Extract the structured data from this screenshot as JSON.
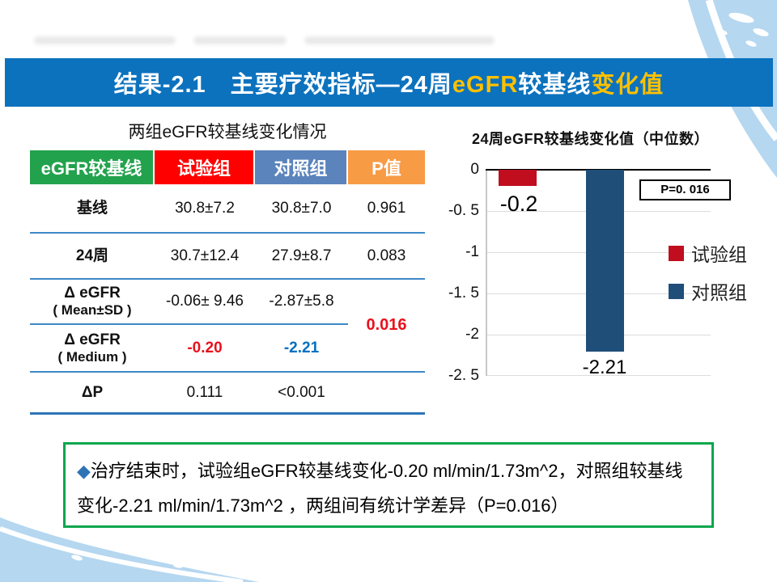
{
  "title_bar": {
    "part1": "结果-2.1　主要疗效指标—24周",
    "part2": "eGFR",
    "part3": "较基线",
    "part4": "变化值",
    "bg_color": "#0C72BE",
    "accent_color": "#FFC000"
  },
  "table": {
    "caption": "两组eGFR较基线变化情况",
    "headers": [
      {
        "label": "eGFR较基线",
        "color": "#22A24C"
      },
      {
        "label": "试验组",
        "color": "#FE0000"
      },
      {
        "label": "对照组",
        "color": "#5B84BC"
      },
      {
        "label": "P值",
        "color": "#F79B45"
      }
    ],
    "rows": [
      {
        "label": "基线",
        "sub": "",
        "trial": "30.8±7.2",
        "control": "30.8±7.0",
        "p": "0.961"
      },
      {
        "label": "24周",
        "sub": "",
        "trial": "30.7±12.4",
        "control": "27.9±8.7",
        "p": "0.083"
      },
      {
        "label": "Δ eGFR",
        "sub": "( Mean±SD )",
        "trial": "-0.06± 9.46",
        "control": "-2.87±5.8",
        "p": ""
      },
      {
        "label": "Δ eGFR",
        "sub": "( Medium )",
        "trial": "-0.20",
        "control": "-2.21",
        "p": ""
      },
      {
        "label": "ΔP",
        "sub": "",
        "trial": "0.111",
        "control": "<0.001",
        "p": ""
      }
    ],
    "shared_p": "0.016"
  },
  "chart_data": {
    "type": "bar",
    "title": "24周eGFR较基线变化值（中位数）",
    "categories": [
      "试验组",
      "对照组"
    ],
    "series": [
      {
        "name": "试验组",
        "value": -0.2,
        "label": "-0.2",
        "color": "#C00E1E"
      },
      {
        "name": "对照组",
        "value": -2.21,
        "label": "-2.21",
        "color": "#1F4E79"
      }
    ],
    "ylim": [
      -2.5,
      0
    ],
    "yticks": [
      "0",
      "-0. 5",
      "-1",
      "-1. 5",
      "-2",
      "-2. 5"
    ],
    "grid": true,
    "legend_position": "right",
    "annotation": "P=0. 016"
  },
  "note": {
    "bullet": "◆",
    "text": "治疗结束时，试验组eGFR较基线变化-0.20 ml/min/1.73m^2，对照组较基线变化-2.21 ml/min/1.73m^2 ，两组间有统计学差异（P=0.016）"
  },
  "colors": {
    "value_red": "#E8111C",
    "value_blue": "#0070C0",
    "diamond_blue": "#2E74B5",
    "wave_blue": "#B5D7F0",
    "note_border": "#0CA64E"
  }
}
